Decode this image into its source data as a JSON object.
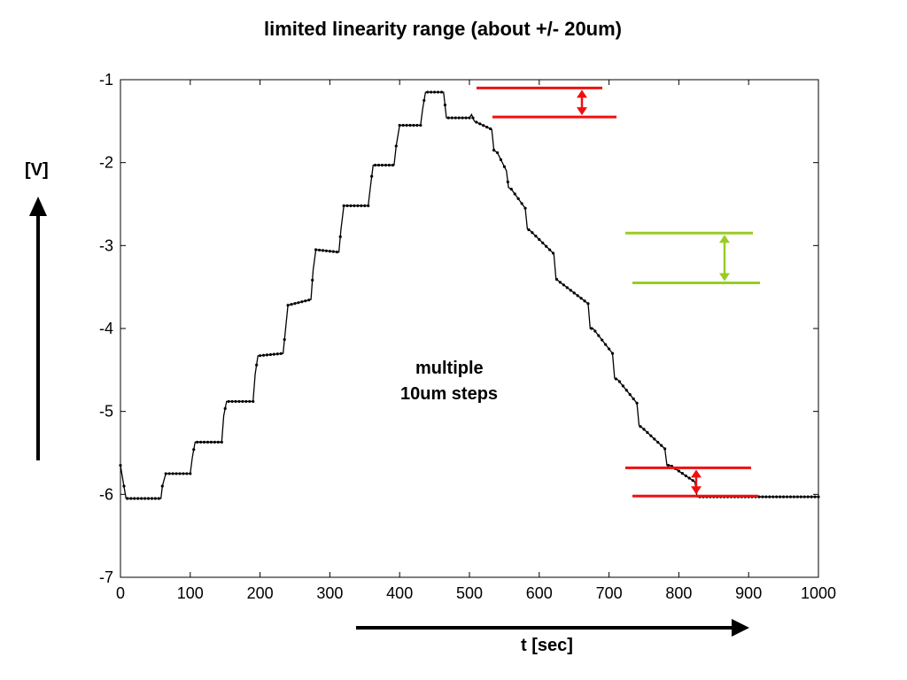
{
  "title": "limited linearity range (about +/- 20um)",
  "annotation": {
    "line1": "multiple",
    "line2": "10um steps"
  },
  "colors": {
    "trace": "#000000",
    "red_marker": "#ee1111",
    "green_marker": "#99cc22",
    "axis": "#000000"
  },
  "chart_data": {
    "type": "line",
    "title": "limited linearity range (about +/- 20um)",
    "xlabel": "t [sec]",
    "ylabel": "[V]",
    "xlim": [
      0,
      1000
    ],
    "ylim": [
      -7,
      -1
    ],
    "xticks": [
      0,
      100,
      200,
      300,
      400,
      500,
      600,
      700,
      800,
      900,
      1000
    ],
    "yticks": [
      -1,
      -2,
      -3,
      -4,
      -5,
      -6,
      -7
    ],
    "grid": false,
    "series": [
      {
        "x": [
          0,
          5,
          8,
          58,
          60,
          65,
          100,
          103,
          107,
          145,
          148,
          152,
          190,
          193,
          197,
          233,
          236,
          240,
          273,
          276,
          280,
          313,
          316,
          320,
          355,
          358,
          362,
          392,
          395,
          400,
          430,
          433,
          437,
          460,
          463,
          467,
          500,
          503,
          507,
          532,
          535,
          540,
          553,
          556,
          560,
          580,
          583,
          587,
          621,
          624,
          628,
          670,
          673,
          677,
          705,
          708,
          713,
          740,
          743,
          748,
          780,
          783,
          788,
          823,
          826,
          831,
          862,
          865,
          870,
          905,
          908,
          913,
          945,
          948,
          953,
          1000
        ],
        "y": [
          -5.65,
          -5.9,
          -6.05,
          -6.05,
          -5.9,
          -5.75,
          -5.75,
          -5.55,
          -5.37,
          -5.37,
          -5.05,
          -4.88,
          -4.88,
          -4.55,
          -4.33,
          -4.3,
          -4.05,
          -3.72,
          -3.65,
          -3.3,
          -3.05,
          -3.08,
          -2.8,
          -2.52,
          -2.52,
          -2.3,
          -2.03,
          -2.03,
          -1.8,
          -1.55,
          -1.55,
          -1.35,
          -1.15,
          -1.15,
          -1.15,
          -1.46,
          -1.46,
          -1.42,
          -1.5,
          -1.6,
          -1.85,
          -1.88,
          -2.1,
          -2.3,
          -2.32,
          -2.55,
          -2.8,
          -2.82,
          -3.1,
          -3.4,
          -3.43,
          -3.7,
          -4.0,
          -4.0,
          -4.3,
          -4.6,
          -4.62,
          -4.9,
          -5.17,
          -5.2,
          -5.45,
          -5.65,
          -5.65,
          -5.85,
          -6.03,
          -6.03,
          -6.03,
          -6.03,
          -6.03,
          -6.03,
          -6.03,
          -6.03,
          -6.03,
          -6.03,
          -6.03,
          -6.03
        ],
        "markers": true
      }
    ],
    "markers_overlay": [
      {
        "color": "red",
        "y_top": -1.1,
        "y_bottom": -1.45
      },
      {
        "color": "green",
        "y_top": -2.85,
        "y_bottom": -3.45
      },
      {
        "color": "red",
        "y_top": -5.68,
        "y_bottom": -6.02
      }
    ]
  }
}
